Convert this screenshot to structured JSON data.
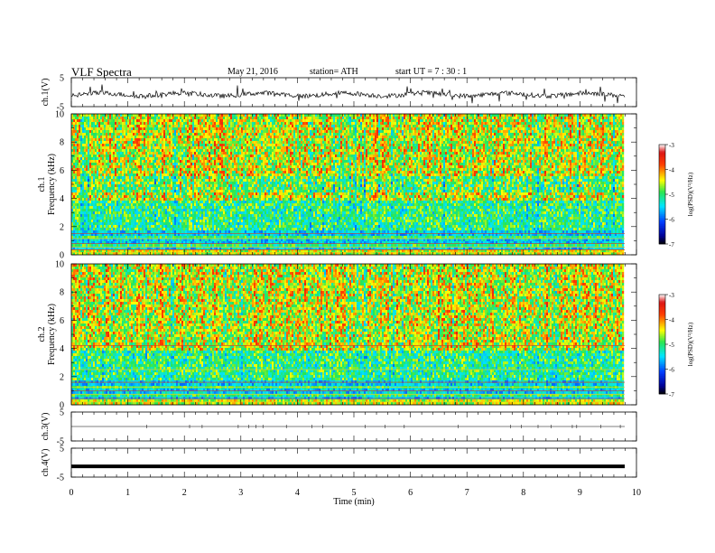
{
  "header": {
    "title": "VLF  Spectra",
    "date": "May 21, 2016",
    "station": "station= ATH",
    "start": "start  UT  =    7  : 30 : 1"
  },
  "chart_data": [
    {
      "type": "line",
      "name": "ch1-waveform",
      "ylabel": "ch.1(V)",
      "ylim": [
        -5,
        5
      ],
      "y_ticks": [
        "5",
        "-5"
      ],
      "x": [
        0,
        1,
        2,
        3,
        4,
        5,
        6,
        7,
        8,
        9,
        9.8
      ],
      "note_values": [
        -0.5,
        -0.8,
        -1.0,
        -0.6,
        -0.9,
        -0.7,
        -0.8,
        -0.6,
        -0.9,
        -0.7,
        -0.8
      ]
    },
    {
      "type": "heatmap",
      "name": "ch1-spectrogram",
      "ylabel": "ch.1\nFrequency  (kHz)",
      "ylim": [
        0,
        10
      ],
      "y_ticks": [
        "0",
        "2",
        "4",
        "6",
        "8",
        "10"
      ],
      "colorbar": {
        "label": "log(PSD)(V²/Hz)",
        "ticks": [
          "-3",
          "-4",
          "-5",
          "-6",
          "-7"
        ],
        "range": [
          -7,
          -3
        ]
      }
    },
    {
      "type": "heatmap",
      "name": "ch2-spectrogram",
      "ylabel": "ch.2\nFrequency  (kHz)",
      "ylim": [
        0,
        10
      ],
      "y_ticks": [
        "0",
        "2",
        "4",
        "6",
        "8",
        "10"
      ],
      "colorbar": {
        "label": "log(PSD)(V²/Hz)",
        "ticks": [
          "-3",
          "-4",
          "-5",
          "-6",
          "-7"
        ],
        "range": [
          -7,
          -3
        ]
      }
    },
    {
      "type": "line",
      "name": "ch3-waveform",
      "ylabel": "ch.3(V)",
      "ylim": [
        -5,
        5
      ],
      "y_ticks": [
        "5",
        "-5"
      ],
      "x": [
        0,
        9.8
      ],
      "values": [
        0,
        0
      ]
    },
    {
      "type": "line",
      "name": "ch4-waveform",
      "ylabel": "ch.4(V)",
      "ylim": [
        -5,
        5
      ],
      "y_ticks": [
        "5",
        "-5"
      ],
      "x": [
        0,
        9.8
      ],
      "values": [
        -1.3,
        -1.3
      ]
    }
  ],
  "xaxis": {
    "label": "Time  (min)",
    "range": [
      0,
      10
    ],
    "ticks": [
      "0",
      "1",
      "2",
      "3",
      "4",
      "5",
      "6",
      "7",
      "8",
      "9",
      "10"
    ]
  }
}
